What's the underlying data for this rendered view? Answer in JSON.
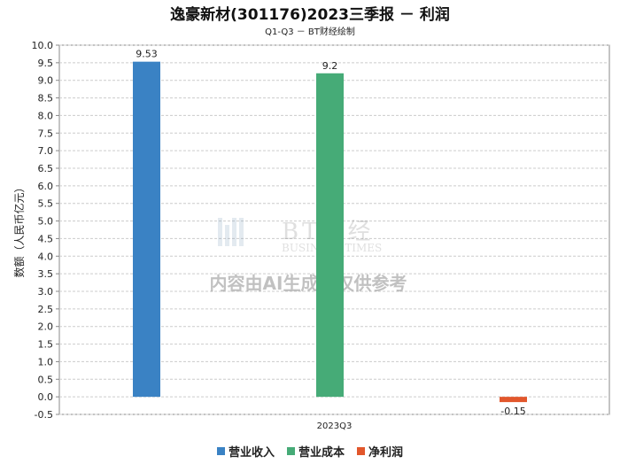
{
  "chart_data": {
    "type": "bar",
    "title": "逸豪新材(301176)2023三季报 － 利润",
    "subtitle": "Q1-Q3 － BT财经绘制",
    "ylabel": "数额（人民币亿元）",
    "xlabel": "",
    "categories": [
      "2023Q3"
    ],
    "ylim": [
      -0.5,
      10.0
    ],
    "ytick_step": 0.5,
    "grid": true,
    "legend_position": "bottom",
    "series": [
      {
        "name": "营业收入",
        "values": [
          9.53
        ],
        "label": "9.53",
        "color": "#3a82c4"
      },
      {
        "name": "营业成本",
        "values": [
          9.2
        ],
        "label": "9.2",
        "color": "#46ab77"
      },
      {
        "name": "净利润",
        "values": [
          -0.15
        ],
        "label": "-0.15",
        "color": "#e2572c"
      }
    ]
  },
  "watermark": {
    "logo_text": "BT财经",
    "logo_sub": "BUSINESS TIMES",
    "disclaimer": "内容由AI生成，仅供参考"
  }
}
